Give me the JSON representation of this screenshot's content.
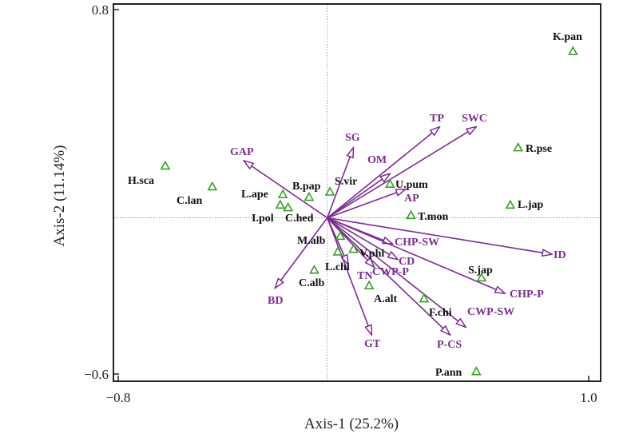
{
  "chart_data": {
    "type": "scatter",
    "subtype": "ordination-biplot",
    "title": "",
    "xlabel": "Axis-1 (25.2%)",
    "ylabel": "Axis-2 (11.14%)",
    "xlim": [
      -0.8,
      1.0
    ],
    "ylim": [
      -0.6,
      0.8
    ],
    "x_ticks": [
      {
        "value": -0.8,
        "label": "−0.8"
      },
      {
        "value": 1.0,
        "label": "1.0"
      }
    ],
    "y_ticks": [
      {
        "value": 0.8,
        "label": "0.8"
      },
      {
        "value": -0.6,
        "label": "−0.6"
      }
    ],
    "grid": false,
    "zero_lines": "dotted",
    "colors": {
      "species": "#3a9a2a",
      "environment": "#7b2d8e",
      "species_label": "#111111"
    },
    "species": [
      {
        "name": "K.pan",
        "x": 0.94,
        "y": 0.64
      },
      {
        "name": "R.pse",
        "x": 0.73,
        "y": 0.27
      },
      {
        "name": "L.jap",
        "x": 0.7,
        "y": 0.05
      },
      {
        "name": "U.pum",
        "x": 0.24,
        "y": 0.13
      },
      {
        "name": "T.mon",
        "x": 0.32,
        "y": 0.01
      },
      {
        "name": "S.vir",
        "x": 0.01,
        "y": 0.1
      },
      {
        "name": "B.pap",
        "x": -0.07,
        "y": 0.08
      },
      {
        "name": "L.ape",
        "x": -0.17,
        "y": 0.09
      },
      {
        "name": "I.pol",
        "x": -0.18,
        "y": 0.05
      },
      {
        "name": "C.hed",
        "x": -0.15,
        "y": 0.04
      },
      {
        "name": "H.sca",
        "x": -0.62,
        "y": 0.2
      },
      {
        "name": "C.lan",
        "x": -0.44,
        "y": 0.12
      },
      {
        "name": "M.alb",
        "x": 0.05,
        "y": -0.07
      },
      {
        "name": "L.chi",
        "x": 0.04,
        "y": -0.13
      },
      {
        "name": "V.phi",
        "x": 0.1,
        "y": -0.12
      },
      {
        "name": "C.alb",
        "x": -0.05,
        "y": -0.2
      },
      {
        "name": "A.alt",
        "x": 0.16,
        "y": -0.26
      },
      {
        "name": "F.chi",
        "x": 0.37,
        "y": -0.31
      },
      {
        "name": "S.jap",
        "x": 0.59,
        "y": -0.23
      },
      {
        "name": "P.ann",
        "x": 0.57,
        "y": -0.59
      }
    ],
    "environment_vectors": [
      {
        "name": "GAP",
        "x": -0.32,
        "y": 0.22
      },
      {
        "name": "SG",
        "x": 0.1,
        "y": 0.27
      },
      {
        "name": "OM",
        "x": 0.24,
        "y": 0.17
      },
      {
        "name": "TP",
        "x": 0.43,
        "y": 0.35
      },
      {
        "name": "SWC",
        "x": 0.57,
        "y": 0.35
      },
      {
        "name": "AP",
        "x": 0.3,
        "y": 0.11
      },
      {
        "name": "ID",
        "x": 0.86,
        "y": -0.14
      },
      {
        "name": "CHP-SW",
        "x": 0.25,
        "y": -0.1
      },
      {
        "name": "CD",
        "x": 0.27,
        "y": -0.16
      },
      {
        "name": "CWP-P",
        "x": 0.18,
        "y": -0.19
      },
      {
        "name": "TN",
        "x": 0.08,
        "y": -0.18
      },
      {
        "name": "CHP-P",
        "x": 0.68,
        "y": -0.29
      },
      {
        "name": "CWP-SW",
        "x": 0.53,
        "y": -0.42
      },
      {
        "name": "P-CS",
        "x": 0.47,
        "y": -0.45
      },
      {
        "name": "GT",
        "x": 0.17,
        "y": -0.45
      },
      {
        "name": "BD",
        "x": -0.2,
        "y": -0.27
      }
    ]
  }
}
